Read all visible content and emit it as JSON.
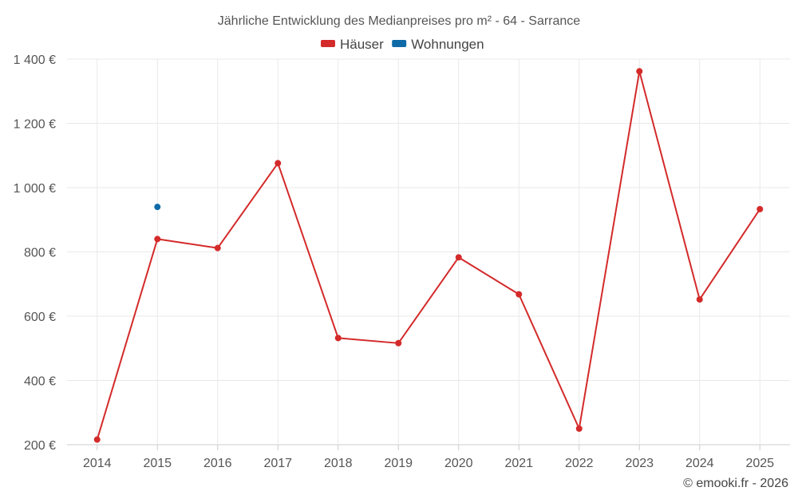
{
  "chart_data": {
    "type": "line",
    "title": "Jährliche Entwicklung des Medianpreises pro m² - 64 - Sarrance",
    "categories": [
      "2014",
      "2015",
      "2016",
      "2017",
      "2018",
      "2019",
      "2020",
      "2021",
      "2022",
      "2023",
      "2024",
      "2025"
    ],
    "series": [
      {
        "name": "Häuser",
        "color": "#d42a2a",
        "values": [
          216,
          840,
          812,
          1076,
          532,
          516,
          783,
          668,
          250,
          1362,
          652,
          933
        ]
      },
      {
        "name": "Wohnungen",
        "color": "#0f6aa8",
        "values": [
          null,
          940,
          null,
          null,
          null,
          null,
          null,
          null,
          null,
          null,
          null,
          null
        ]
      }
    ],
    "ylim": [
      200,
      1400
    ],
    "yticks": [
      200,
      400,
      600,
      800,
      1000,
      1200,
      1400
    ],
    "ytick_labels": [
      "200 €",
      "400 €",
      "600 €",
      "800 €",
      "1 000 €",
      "1 200 €",
      "1 400 €"
    ],
    "xlabel": "",
    "ylabel": "",
    "grid": true,
    "legend_position": "top-center"
  },
  "credit": "© emooki.fr - 2026"
}
